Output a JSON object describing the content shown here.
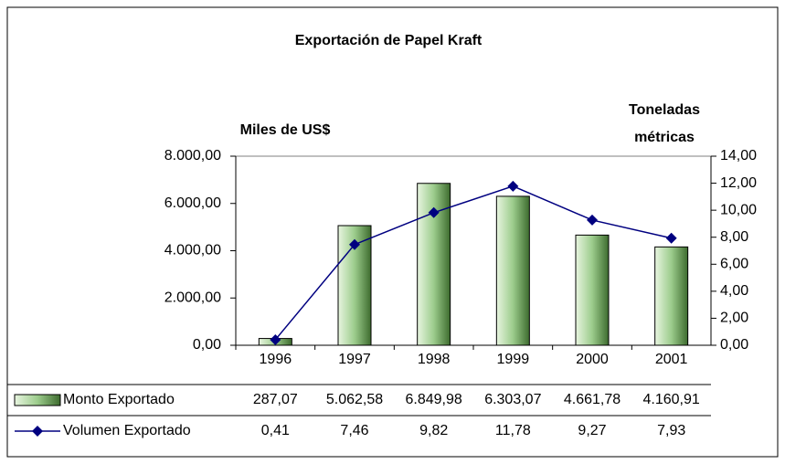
{
  "chart_data": {
    "type": "bar-line",
    "title": "Exportación de Papel Kraft",
    "ylabel": "Miles de US$",
    "y2label": [
      "Toneladas",
      "métricas"
    ],
    "categories": [
      "1996",
      "1997",
      "1998",
      "1999",
      "2000",
      "2001"
    ],
    "series": [
      {
        "name": "Monto Exportado",
        "type": "bar",
        "color": "#9ccc8c",
        "values": [
          287.07,
          5062.58,
          6849.98,
          6303.07,
          4661.78,
          4160.91
        ],
        "value_labels": [
          "287,07",
          "5.062,58",
          "6.849,98",
          "6.303,07",
          "4.661,78",
          "4.160,91"
        ]
      },
      {
        "name": "Volumen Exportado",
        "type": "line",
        "axis": "y2",
        "color": "#000080",
        "values": [
          0.41,
          7.46,
          9.82,
          11.78,
          9.27,
          7.93
        ],
        "value_labels": [
          "0,41",
          "7,46",
          "9,82",
          "11,78",
          "9,27",
          "7,93"
        ]
      }
    ],
    "ylim": [
      0,
      8000
    ],
    "yticks": [
      {
        "value": 0,
        "label": "0,00"
      },
      {
        "value": 2000,
        "label": "2.000,00"
      },
      {
        "value": 4000,
        "label": "4.000,00"
      },
      {
        "value": 6000,
        "label": "6.000,00"
      },
      {
        "value": 8000,
        "label": "8.000,00"
      }
    ],
    "y2lim": [
      0,
      14
    ],
    "y2ticks": [
      {
        "value": 0,
        "label": "0,00"
      },
      {
        "value": 2,
        "label": "2,00"
      },
      {
        "value": 4,
        "label": "4,00"
      },
      {
        "value": 6,
        "label": "6,00"
      },
      {
        "value": 8,
        "label": "8,00"
      },
      {
        "value": 10,
        "label": "10,00"
      },
      {
        "value": 12,
        "label": "12,00"
      },
      {
        "value": 14,
        "label": "14,00"
      }
    ],
    "data_table": true
  }
}
